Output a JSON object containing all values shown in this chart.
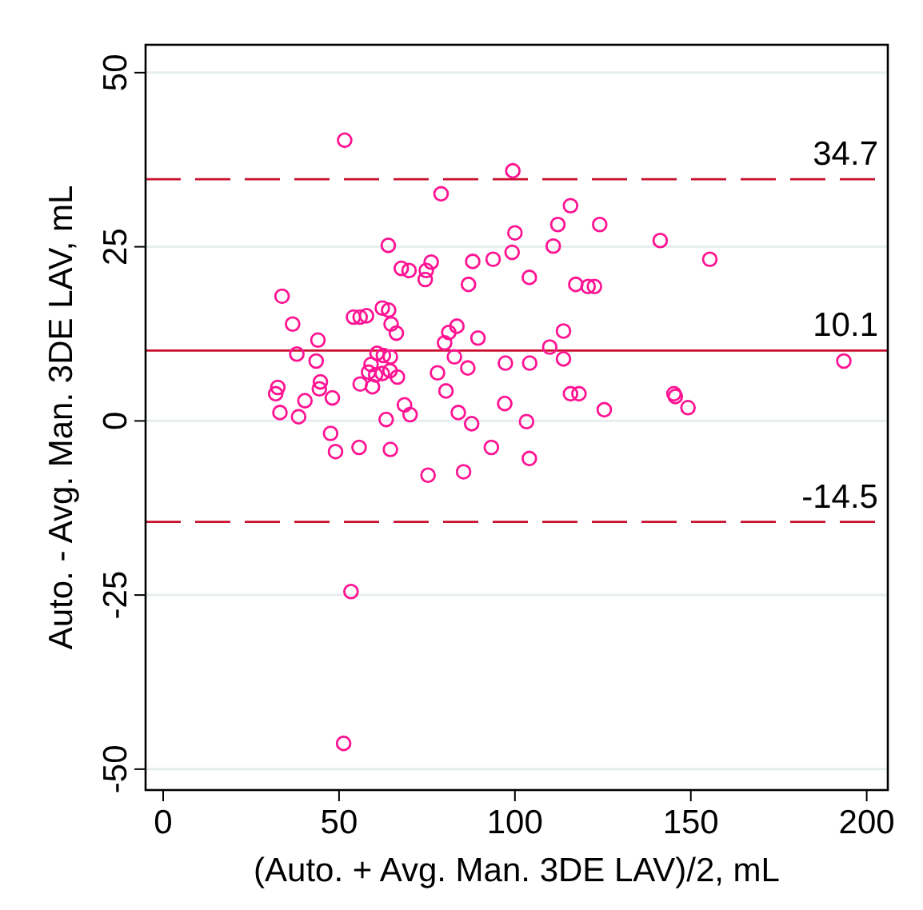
{
  "chart_data": {
    "type": "scatter",
    "xlabel": "(Auto. + Avg. Man. 3DE LAV)/2, mL",
    "ylabel": "Auto. - Avg. Man. 3DE LAV, mL",
    "xlim": [
      -5,
      206
    ],
    "ylim": [
      -53,
      54
    ],
    "xticks": [
      0,
      50,
      100,
      150,
      200
    ],
    "yticks": [
      -50,
      -25,
      0,
      25,
      50
    ],
    "grid": "y",
    "marker": "circle",
    "series": [
      {
        "color": "#ff1493",
        "x": [
          51.6,
          99.4,
          79,
          64,
          115.8,
          112.2,
          124.1,
          100,
          110.9,
          141.3,
          155.4,
          99.2,
          93.8,
          88,
          86.8,
          104.1,
          117.3,
          120.8,
          122.6,
          89.5,
          113.8,
          109.9,
          113.8,
          86.6,
          97.3,
          104.2,
          193.5,
          115.8,
          118.2,
          145.2,
          145.6,
          149.2,
          125.4,
          97.1,
          87.7,
          103.3,
          93.3,
          104.1,
          85.4,
          67.7,
          69.9,
          74.8,
          76.2,
          74.5,
          33.8,
          36.8,
          44,
          38,
          43.5,
          54.1,
          56,
          57.8,
          62.3,
          64.1,
          64.8,
          66.3,
          81.2,
          83.5,
          80,
          60.8,
          62.6,
          64.6,
          82.8,
          78,
          59.1,
          58.4,
          60.4,
          62.3,
          64.5,
          66.6,
          56,
          59.5,
          80.4,
          44.7,
          44.4,
          32.6,
          32,
          48.1,
          40.3,
          33.2,
          38.5,
          68.6,
          70.2,
          83.9,
          63.4,
          47.6,
          49,
          55.7,
          64.6,
          75.3,
          53.4,
          51.3
        ],
        "values": [
          40.3,
          35.9,
          32.6,
          25.2,
          30.9,
          28.2,
          28.2,
          27,
          25.1,
          25.9,
          23.2,
          24.2,
          23.2,
          22.9,
          19.6,
          20.6,
          19.6,
          19.3,
          19.3,
          11.9,
          12.9,
          10.6,
          8.9,
          7.6,
          8.3,
          8.3,
          8.6,
          3.9,
          3.9,
          3.9,
          3.5,
          1.9,
          1.6,
          2.5,
          -0.4,
          -0.1,
          -3.8,
          -5.4,
          -7.3,
          21.9,
          21.6,
          21.6,
          22.8,
          20.3,
          17.9,
          13.9,
          11.6,
          9.6,
          8.6,
          14.9,
          14.9,
          15.1,
          16.2,
          15.9,
          13.9,
          12.6,
          12.7,
          13.6,
          11.2,
          9.7,
          9.4,
          9.2,
          9.2,
          6.9,
          8.1,
          7,
          6.6,
          6.8,
          7.2,
          6.3,
          5.3,
          4.9,
          4.3,
          5.6,
          4.6,
          4.8,
          3.9,
          3.3,
          2.9,
          1.2,
          0.6,
          2.3,
          0.9,
          1.2,
          0.2,
          -1.8,
          -4.4,
          -3.8,
          -4.1,
          -7.8,
          -24.5,
          -46.3
        ]
      }
    ],
    "ref_lines": [
      {
        "axis": "y",
        "value": 34.7,
        "label": "34.7",
        "color": "#c8102e",
        "line_style": "dashed"
      },
      {
        "axis": "y",
        "value": 10.1,
        "label": "10.1",
        "color": "#c8102e",
        "line_style": "solid"
      },
      {
        "axis": "y",
        "value": -14.5,
        "label": "-14.5",
        "color": "#c8102e",
        "line_style": "dashed"
      }
    ]
  }
}
